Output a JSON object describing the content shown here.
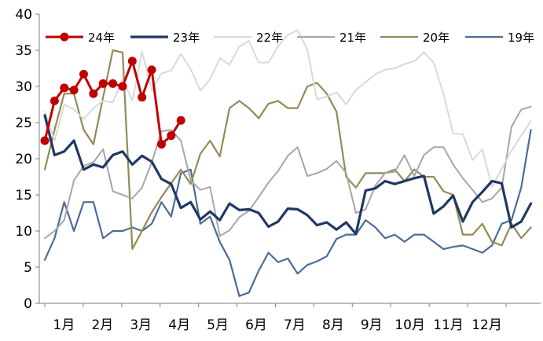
{
  "chart_data": {
    "type": "line",
    "title": "",
    "xlabel": "",
    "ylabel": "",
    "ylim": [
      0,
      40
    ],
    "yticks": [
      0,
      5,
      10,
      15,
      20,
      25,
      30,
      35,
      40
    ],
    "x_unit": "week",
    "x_range": [
      1,
      52
    ],
    "month_labels": [
      "1月",
      "2月",
      "3月",
      "4月",
      "5月",
      "6月",
      "7月",
      "8月",
      "9月",
      "10月",
      "11月",
      "12月"
    ],
    "grid": false,
    "legend": {
      "placement": "top",
      "entries": [
        "24年",
        "23年",
        "22年",
        "21年",
        "20年",
        "19年"
      ]
    },
    "series": [
      {
        "name": "24年",
        "color": "#c00000",
        "marker": "circle",
        "values": [
          22.5,
          28.0,
          29.8,
          29.5,
          31.7,
          29.0,
          30.4,
          30.4,
          30.0,
          33.5,
          28.5,
          32.3,
          22.0,
          23.2,
          25.3
        ]
      },
      {
        "name": "23年",
        "color": "#1f3864",
        "values": [
          26.0,
          20.5,
          21.0,
          22.5,
          18.5,
          19.2,
          18.8,
          20.5,
          21.0,
          19.2,
          20.4,
          19.6,
          17.2,
          16.5,
          13.2,
          14.0,
          11.6,
          12.7,
          11.5,
          13.8,
          12.9,
          13.0,
          12.5,
          10.6,
          11.3,
          13.1,
          13.0,
          12.2,
          10.8,
          11.2,
          10.2,
          11.2,
          9.6,
          15.6,
          15.9,
          16.9,
          16.5,
          16.9,
          17.3,
          17.6,
          12.4,
          13.4,
          14.9,
          11.3,
          14.0,
          15.4,
          16.9,
          16.6,
          10.5,
          11.3,
          13.8
        ]
      },
      {
        "name": "22年",
        "color": "#d9d9d9",
        "values": [
          26.5,
          22.5,
          27.5,
          26.8,
          25.5,
          27.0,
          28.0,
          27.8,
          31.0,
          28.0,
          34.8,
          29.5,
          31.8,
          32.2,
          34.5,
          32.4,
          29.4,
          31.0,
          33.9,
          33.0,
          35.5,
          36.3,
          33.3,
          33.3,
          35.6,
          37.1,
          37.8,
          35.1,
          28.2,
          28.6,
          29.2,
          27.5,
          29.5,
          30.6,
          31.7,
          32.3,
          32.5,
          33.1,
          33.5,
          34.7,
          33.3,
          29.0,
          23.5,
          23.4,
          19.8,
          21.3,
          16.1,
          18.6,
          21.1,
          23.2,
          25.2
        ]
      },
      {
        "name": "21年",
        "color": "#a6a6a6",
        "values": [
          9.0,
          10.0,
          11.5,
          17.0,
          19.0,
          19.5,
          21.3,
          15.5,
          15.0,
          14.5,
          16.0,
          19.5,
          23.8,
          24.0,
          22.5,
          17.0,
          15.7,
          16.1,
          9.3,
          10.1,
          11.9,
          12.8,
          14.7,
          16.7,
          18.3,
          20.4,
          21.6,
          17.6,
          18.0,
          18.6,
          19.7,
          18.0,
          12.5,
          13.0,
          16.3,
          18.0,
          18.2,
          20.5,
          17.6,
          20.5,
          21.6,
          21.6,
          19.2,
          17.3,
          15.7,
          14.0,
          14.5,
          16.0,
          24.4,
          26.8,
          27.2
        ]
      },
      {
        "name": "20年",
        "color": "#948a54",
        "values": [
          18.5,
          24.0,
          29.0,
          29.0,
          24.0,
          22.0,
          28.5,
          35.0,
          34.7,
          7.5,
          10.0,
          12.6,
          14.7,
          16.6,
          18.5,
          16.5,
          20.7,
          22.5,
          20.3,
          27.0,
          28.0,
          27.0,
          25.6,
          27.6,
          28.0,
          27.0,
          27.0,
          30.0,
          30.5,
          29.0,
          26.5,
          17.5,
          16.0,
          18.0,
          18.0,
          18.0,
          18.5,
          16.9,
          18.5,
          17.5,
          17.5,
          15.5,
          15.0,
          9.5,
          9.5,
          11.0,
          8.5,
          8.0,
          11.0,
          9.0,
          10.5
        ]
      },
      {
        "name": "19年",
        "color": "#4a6d98",
        "values": [
          6.0,
          9.0,
          14.0,
          10.0,
          14.0,
          14.0,
          9.0,
          10.0,
          10.0,
          10.5,
          10.0,
          11.0,
          14.0,
          12.0,
          18.0,
          18.5,
          11.0,
          12.0,
          8.5,
          6.0,
          1.0,
          1.5,
          4.5,
          7.0,
          5.7,
          6.2,
          4.1,
          5.3,
          5.8,
          6.5,
          8.9,
          9.5,
          9.5,
          11.5,
          10.5,
          9.0,
          9.5,
          8.5,
          9.5,
          9.5,
          8.5,
          7.5,
          7.8,
          8.0,
          7.5,
          7.0,
          8.0,
          11.0,
          11.5,
          16.0,
          24.0
        ]
      }
    ]
  }
}
